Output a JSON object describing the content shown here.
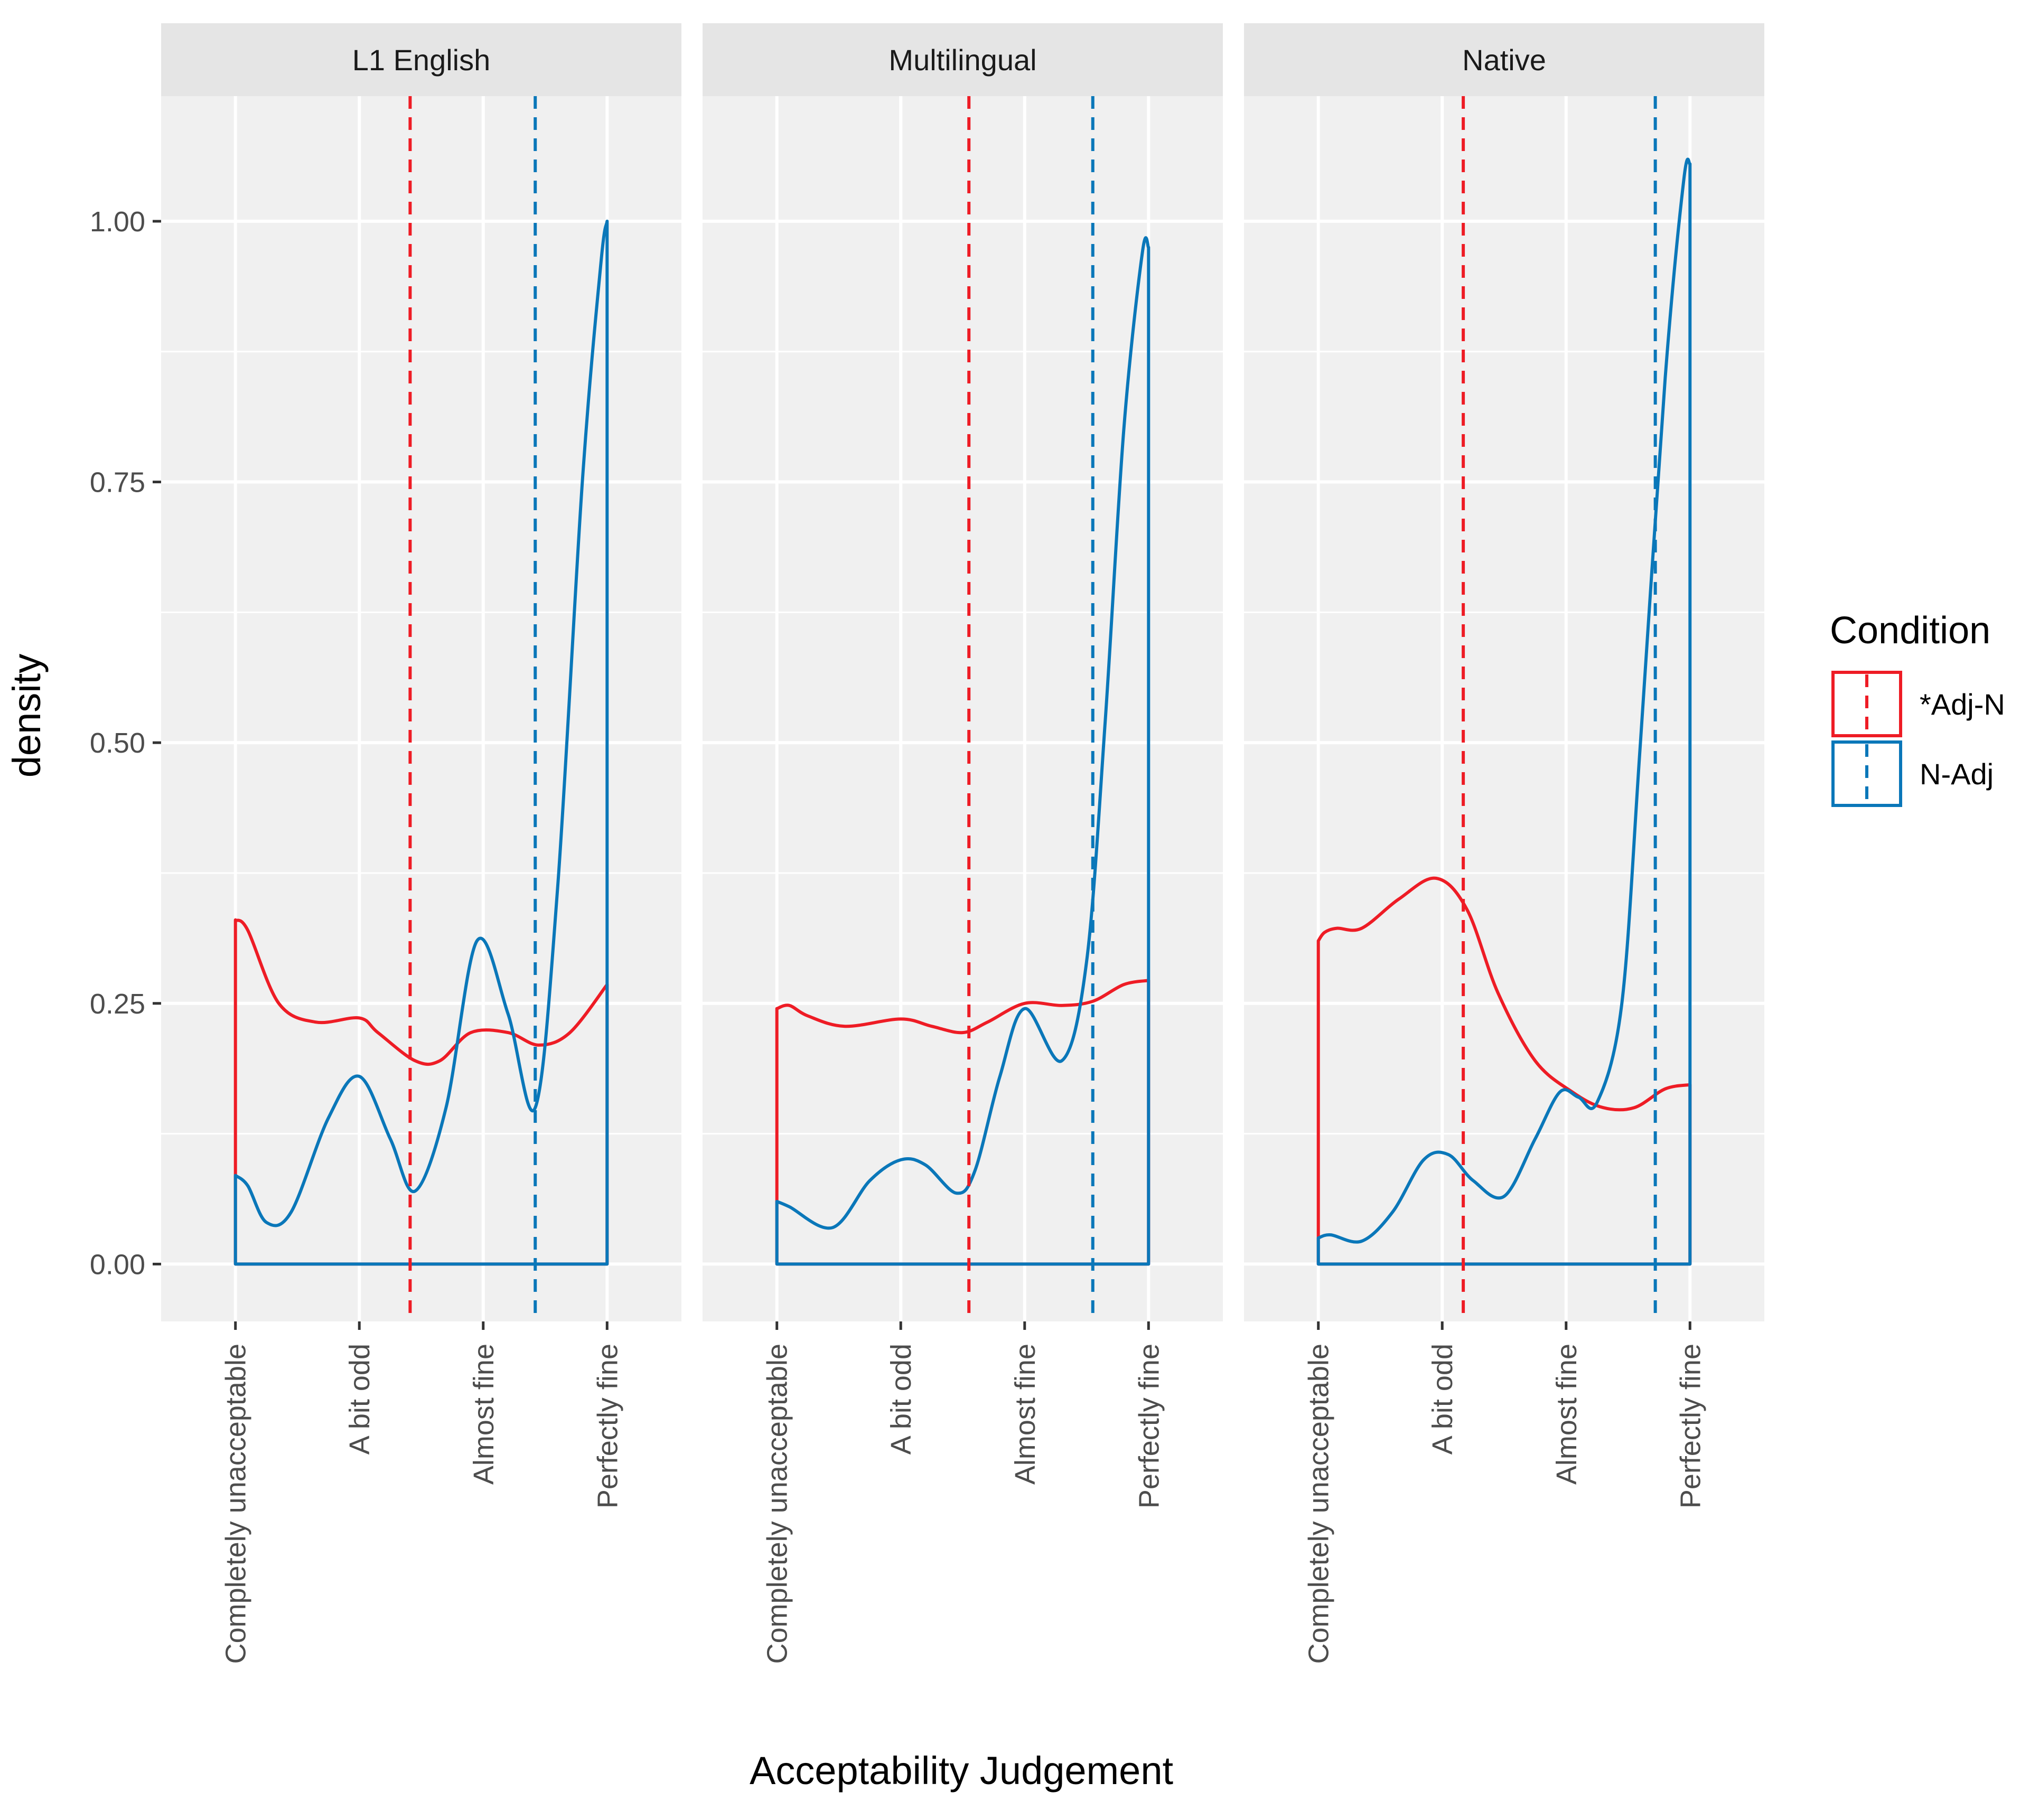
{
  "chart_data": {
    "type": "line",
    "subtype": "density",
    "ylabel": "density",
    "xlabel": "Acceptability Judgement",
    "x_categories": [
      "Completely unacceptable",
      "A bit odd",
      "Almost fine",
      "Perfectly fine"
    ],
    "x_range": [
      0.4,
      4.6
    ],
    "ylim": [
      -0.055,
      1.12
    ],
    "y_ticks": [
      0,
      0.25,
      0.5,
      0.75,
      1.0
    ],
    "y_tick_labels": [
      "0.00",
      "0.25",
      "0.50",
      "0.75",
      "1.00"
    ],
    "grid": true,
    "legend": {
      "title": "Condition",
      "position": "right",
      "entries": [
        {
          "label": "*Adj-N",
          "color": "#ee1c25"
        },
        {
          "label": "N-Adj",
          "color": "#0a77b9"
        }
      ]
    },
    "series_colors": {
      "adj_n": "#ee1c25",
      "n_adj": "#0a77b9"
    },
    "panels": [
      {
        "strip": "L1 English",
        "series": [
          {
            "key": "adj_n",
            "x": [
              1,
              1.1,
              1.35,
              1.65,
              2,
              2.15,
              2.45,
              2.65,
              2.9,
              3.2,
              3.45,
              3.7,
              4
            ],
            "y": [
              0.33,
              0.32,
              0.25,
              0.232,
              0.236,
              0.222,
              0.195,
              0.195,
              0.222,
              0.222,
              0.21,
              0.222,
              0.268
            ],
            "mean": 2.41
          },
          {
            "key": "n_adj",
            "x": [
              1,
              1.1,
              1.25,
              1.45,
              1.75,
              2,
              2.25,
              2.45,
              2.7,
              2.95,
              3.2,
              3.42,
              3.6,
              3.8,
              3.95,
              4
            ],
            "y": [
              0.085,
              0.075,
              0.04,
              0.05,
              0.14,
              0.18,
              0.12,
              0.07,
              0.15,
              0.31,
              0.24,
              0.15,
              0.36,
              0.75,
              0.96,
              1.0
            ],
            "mean": 3.42
          }
        ]
      },
      {
        "strip": "Multilingual",
        "series": [
          {
            "key": "adj_n",
            "x": [
              1,
              1.1,
              1.25,
              1.55,
              2,
              2.25,
              2.5,
              2.7,
              3.0,
              3.3,
              3.55,
              3.8,
              4
            ],
            "y": [
              0.245,
              0.248,
              0.238,
              0.228,
              0.235,
              0.228,
              0.222,
              0.232,
              0.25,
              0.248,
              0.252,
              0.268,
              0.272
            ],
            "mean": 2.55
          },
          {
            "key": "n_adj",
            "x": [
              1,
              1.1,
              1.45,
              1.75,
              2,
              2.2,
              2.45,
              2.6,
              2.8,
              3.0,
              3.3,
              3.5,
              3.65,
              3.8,
              3.95,
              4
            ],
            "y": [
              0.06,
              0.055,
              0.035,
              0.08,
              0.1,
              0.095,
              0.068,
              0.09,
              0.18,
              0.245,
              0.195,
              0.29,
              0.52,
              0.8,
              0.97,
              0.975
            ],
            "mean": 3.55
          }
        ]
      },
      {
        "strip": "Native",
        "series": [
          {
            "key": "adj_n",
            "x": [
              1,
              1.05,
              1.15,
              1.35,
              1.65,
              1.95,
              2.2,
              2.45,
              2.75,
              3.05,
              3.3,
              3.55,
              3.8,
              4
            ],
            "y": [
              0.31,
              0.318,
              0.322,
              0.322,
              0.35,
              0.37,
              0.34,
              0.26,
              0.195,
              0.165,
              0.15,
              0.15,
              0.168,
              0.172
            ],
            "mean": 2.17
          },
          {
            "key": "n_adj",
            "x": [
              1,
              1.1,
              1.35,
              1.6,
              1.85,
              2.05,
              2.25,
              2.5,
              2.75,
              2.95,
              3.1,
              3.25,
              3.45,
              3.6,
              3.8,
              3.95,
              4
            ],
            "y": [
              0.025,
              0.028,
              0.022,
              0.05,
              0.1,
              0.105,
              0.08,
              0.065,
              0.12,
              0.165,
              0.16,
              0.155,
              0.25,
              0.5,
              0.85,
              1.04,
              1.055
            ],
            "mean": 3.72
          }
        ]
      }
    ]
  }
}
